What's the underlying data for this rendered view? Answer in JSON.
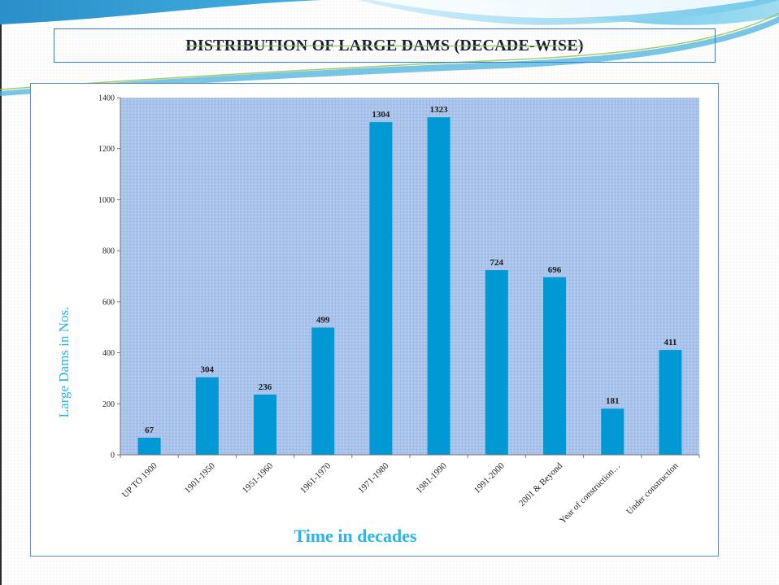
{
  "slide": {
    "title": "DISTRIBUTION OF LARGE DAMS  (DECADE-WISE)"
  },
  "colors": {
    "bar": "#0099d6",
    "plot_background": "#a9c3ea",
    "axis_title": "#29b5e8",
    "title_box_border": "#2e7fd0"
  },
  "chart_data": {
    "type": "bar",
    "title": "DISTRIBUTION OF LARGE DAMS  (DECADE-WISE)",
    "xlabel": "Time in decades",
    "ylabel": "Large Dams  in Nos.",
    "ylim": [
      0,
      1400
    ],
    "yticks": [
      0,
      200,
      400,
      600,
      800,
      1000,
      1200,
      1400
    ],
    "grid": false,
    "legend": "none",
    "categories": [
      "UP TO 1900",
      "1901-1950",
      "1951-1960",
      "1961-1970",
      "1971-1980",
      "1981-1990",
      "1991-2000",
      "2001 & Beyond",
      "Year of construction…",
      "Under construction"
    ],
    "values": [
      67,
      304,
      236,
      499,
      1304,
      1323,
      724,
      696,
      181,
      411
    ],
    "data_labels": [
      "67",
      "304",
      "236",
      "499",
      "1304",
      "1323",
      "724",
      "696",
      "181",
      "411"
    ]
  }
}
